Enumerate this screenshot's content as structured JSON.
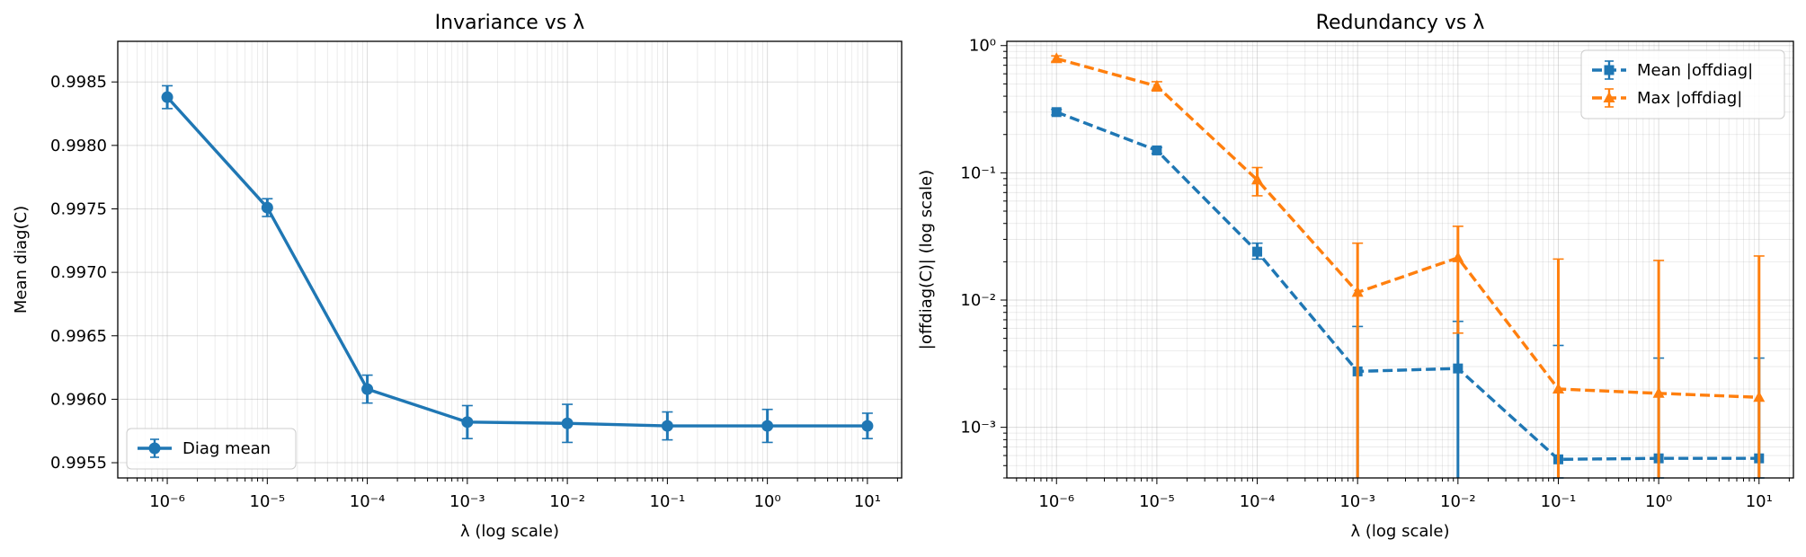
{
  "chart_data": [
    {
      "type": "line",
      "title": "Invariance vs λ",
      "xlabel": "λ (log scale)",
      "ylabel": "Mean diag(C)",
      "xscale": "log",
      "yscale": "linear",
      "xlim": [
        3.2e-07,
        22
      ],
      "ylim": [
        0.99538,
        0.99882
      ],
      "grid": true,
      "legend_position": "lower-left",
      "x": [
        1e-06,
        1e-05,
        0.0001,
        0.001,
        0.01,
        0.1,
        1,
        10
      ],
      "xtick_labels": [
        "10⁻⁶",
        "10⁻⁵",
        "10⁻⁴",
        "10⁻³",
        "10⁻²",
        "10⁻¹",
        "10⁰",
        "10¹"
      ],
      "ytick_labels": [
        "0.9955",
        "0.9960",
        "0.9965",
        "0.9970",
        "0.9975",
        "0.9980",
        "0.9985"
      ],
      "series": [
        {
          "name": "Diag mean",
          "color": "#1f77b4",
          "marker": "circle",
          "linestyle": "solid",
          "values": [
            0.99838,
            0.99751,
            0.99608,
            0.99582,
            0.99581,
            0.99579,
            0.99579,
            0.99579
          ],
          "errors": [
            9e-05,
            7e-05,
            0.00011,
            0.00013,
            0.00015,
            0.00011,
            0.00013,
            0.0001
          ]
        }
      ]
    },
    {
      "type": "line",
      "title": "Redundancy vs λ",
      "xlabel": "λ (log scale)",
      "ylabel": "|offdiag(C)| (log scale)",
      "xscale": "log",
      "yscale": "log",
      "xlim": [
        3.2e-07,
        22
      ],
      "ylim": [
        0.0004,
        1.08
      ],
      "grid": true,
      "legend_position": "top-right",
      "x": [
        1e-06,
        1e-05,
        0.0001,
        0.001,
        0.01,
        0.1,
        1,
        10
      ],
      "xtick_labels": [
        "10⁻⁶",
        "10⁻⁵",
        "10⁻⁴",
        "10⁻³",
        "10⁻²",
        "10⁻¹",
        "10⁰",
        "10¹"
      ],
      "ytick_labels": [
        "10⁻³",
        "10⁻²",
        "10⁻¹",
        "10⁰"
      ],
      "series": [
        {
          "name": "Mean |offdiag|",
          "color": "#1f77b4",
          "marker": "square",
          "linestyle": "dashed",
          "values": [
            0.3,
            0.15,
            0.024,
            0.00275,
            0.0029,
            0.00056,
            0.00057,
            0.00057
          ],
          "err_low": [
            0.285,
            0.142,
            0.021,
            1e-05,
            1e-05,
            0.0004,
            0.0004,
            0.0004
          ],
          "err_high": [
            0.315,
            0.158,
            0.028,
            0.0062,
            0.0068,
            0.0044,
            0.0035,
            0.0035
          ]
        },
        {
          "name": "Max |offdiag|",
          "color": "#ff7f0e",
          "marker": "triangle",
          "linestyle": "dashed",
          "values": [
            0.79,
            0.48,
            0.088,
            0.0115,
            0.0215,
            0.002,
            0.00185,
            0.00172
          ],
          "err_low": [
            0.75,
            0.44,
            0.066,
            1e-05,
            0.0055,
            1e-05,
            1e-05,
            1e-05
          ],
          "err_high": [
            0.83,
            0.52,
            0.11,
            0.028,
            0.038,
            0.021,
            0.0205,
            0.0222
          ]
        }
      ]
    }
  ]
}
